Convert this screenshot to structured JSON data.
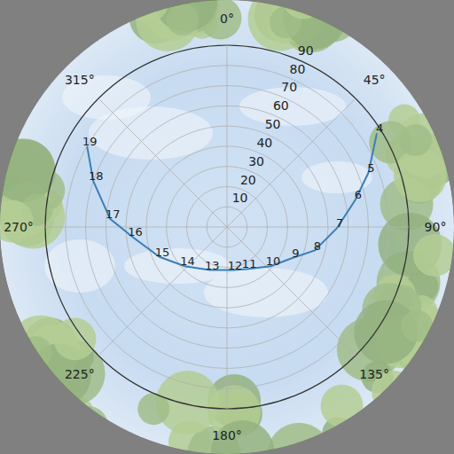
{
  "chart_data": {
    "type": "polar",
    "xlim": [
      0,
      360
    ],
    "xticks": [
      {
        "value": 0,
        "label": "0°"
      },
      {
        "value": 45,
        "label": "45°"
      },
      {
        "value": 90,
        "label": "90°"
      },
      {
        "value": 135,
        "label": "135°"
      },
      {
        "value": 180,
        "label": "180°"
      },
      {
        "value": 225,
        "label": "225°"
      },
      {
        "value": 270,
        "label": "270°"
      },
      {
        "value": 315,
        "label": "315°"
      }
    ],
    "ylim": [
      0,
      90
    ],
    "yticks": [
      10,
      20,
      30,
      40,
      50,
      60,
      70,
      80,
      90
    ],
    "grid": true,
    "series": [
      {
        "color": "#3b7fb8",
        "line_style": "solid",
        "point_labels": [
          4,
          5,
          6,
          7,
          8,
          9,
          10,
          11,
          12,
          13,
          14,
          15,
          16,
          17,
          18,
          19
        ],
        "x": [
          58,
          69,
          78,
          90.5,
          105,
          115,
          132,
          155,
          173,
          202,
          227,
          246,
          264,
          274,
          289,
          300
        ],
        "values": [
          87.5,
          75,
          65,
          54.5,
          45,
          36,
          29,
          23,
          21.5,
          23,
          28.5,
          36.5,
          47,
          58,
          70,
          80
        ]
      }
    ]
  }
}
